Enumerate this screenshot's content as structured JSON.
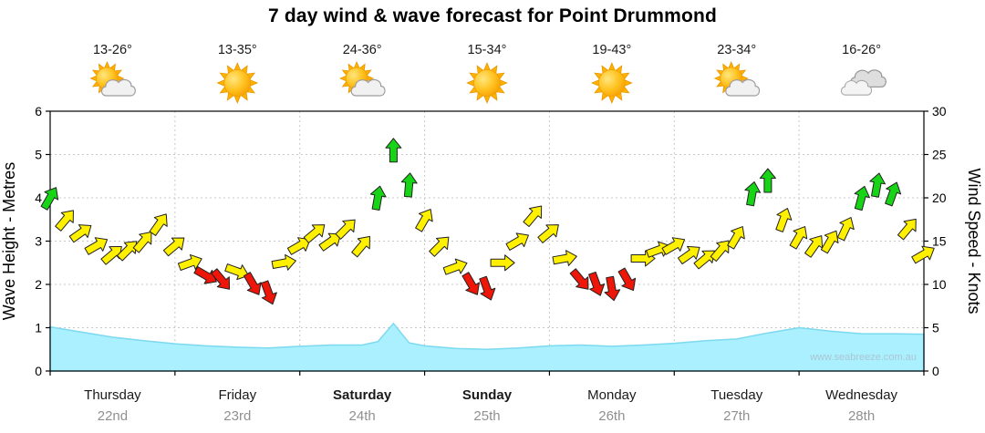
{
  "page": {
    "watermark": "www.seabreeze.com.au"
  },
  "chart_data": {
    "type": "line",
    "title": "7 day wind & wave forecast for Point Drummond",
    "left_axis": {
      "label": "Wave Height - Metres",
      "min": 0,
      "max": 6,
      "tick_step": 1
    },
    "right_axis": {
      "label": "Wind Speed - Knots",
      "min": 0,
      "max": 30,
      "tick_step": 5
    },
    "legend": "none",
    "grid": "dotted",
    "days": [
      {
        "name": "Thursday",
        "date": "22nd",
        "temps": "13-26°",
        "icon": "sun-cloud",
        "weekend": false
      },
      {
        "name": "Friday",
        "date": "23rd",
        "temps": "13-35°",
        "icon": "sun",
        "weekend": false
      },
      {
        "name": "Saturday",
        "date": "24th",
        "temps": "24-36°",
        "icon": "sun-cloud",
        "weekend": true
      },
      {
        "name": "Sunday",
        "date": "25th",
        "temps": "15-34°",
        "icon": "sun",
        "weekend": true
      },
      {
        "name": "Monday",
        "date": "26th",
        "temps": "19-43°",
        "icon": "sun",
        "weekend": false
      },
      {
        "name": "Tuesday",
        "date": "27th",
        "temps": "23-34°",
        "icon": "sun-cloud",
        "weekend": false
      },
      {
        "name": "Wednesday",
        "date": "28th",
        "temps": "16-26°",
        "icon": "cloud",
        "weekend": false
      }
    ],
    "wind_series": {
      "name": "Wind Speed",
      "units": "knots",
      "thresholds": {
        "red_max": 11,
        "green_min": 20
      },
      "points_format": [
        "day_fraction",
        "knots",
        "direction_deg"
      ],
      "points": [
        [
          0.0,
          20,
          30
        ],
        [
          0.125,
          17.5,
          40
        ],
        [
          0.25,
          16,
          55
        ],
        [
          0.375,
          14.5,
          60
        ],
        [
          0.5,
          13.5,
          50
        ],
        [
          0.625,
          14,
          45
        ],
        [
          0.75,
          15,
          40
        ],
        [
          0.875,
          17,
          35
        ],
        [
          1.0,
          14.5,
          50
        ],
        [
          1.125,
          12.5,
          70
        ],
        [
          1.25,
          11,
          120
        ],
        [
          1.375,
          10.5,
          140
        ],
        [
          1.5,
          11.5,
          110
        ],
        [
          1.625,
          10,
          150
        ],
        [
          1.75,
          9,
          160
        ],
        [
          1.875,
          12.5,
          80
        ],
        [
          2.0,
          14.5,
          60
        ],
        [
          2.125,
          16,
          50
        ],
        [
          2.25,
          15,
          55
        ],
        [
          2.375,
          16.5,
          45
        ],
        [
          2.5,
          14.5,
          40
        ],
        [
          2.625,
          20,
          10
        ],
        [
          2.75,
          25.5,
          0
        ],
        [
          2.875,
          21.5,
          5
        ],
        [
          3.0,
          17.5,
          30
        ],
        [
          3.125,
          14.5,
          45
        ],
        [
          3.25,
          12,
          70
        ],
        [
          3.375,
          10,
          150
        ],
        [
          3.5,
          9.5,
          160
        ],
        [
          3.625,
          12.5,
          90
        ],
        [
          3.75,
          15,
          60
        ],
        [
          3.875,
          18,
          40
        ],
        [
          4.0,
          16,
          50
        ],
        [
          4.125,
          13,
          80
        ],
        [
          4.25,
          10.5,
          140
        ],
        [
          4.375,
          10,
          160
        ],
        [
          4.5,
          9.5,
          170
        ],
        [
          4.625,
          10.5,
          150
        ],
        [
          4.75,
          13,
          90
        ],
        [
          4.875,
          14,
          70
        ],
        [
          5.0,
          14.5,
          60
        ],
        [
          5.125,
          13.5,
          55
        ],
        [
          5.25,
          13,
          50
        ],
        [
          5.375,
          14,
          40
        ],
        [
          5.5,
          15.5,
          30
        ],
        [
          5.625,
          20.5,
          10
        ],
        [
          5.75,
          22,
          0
        ],
        [
          5.875,
          17.5,
          20
        ],
        [
          6.0,
          15.5,
          30
        ],
        [
          6.125,
          14.5,
          35
        ],
        [
          6.25,
          15,
          30
        ],
        [
          6.375,
          16.5,
          25
        ],
        [
          6.5,
          20,
          15
        ],
        [
          6.625,
          21.5,
          10
        ],
        [
          6.75,
          20.5,
          20
        ],
        [
          6.875,
          16.5,
          40
        ],
        [
          7.0,
          13.5,
          60
        ]
      ]
    },
    "wave_series": {
      "name": "Wave Height",
      "units": "metres",
      "points_format": [
        "day_fraction",
        "metres"
      ],
      "points": [
        [
          0,
          1.02
        ],
        [
          0.25,
          0.9
        ],
        [
          0.5,
          0.78
        ],
        [
          0.75,
          0.7
        ],
        [
          1,
          0.63
        ],
        [
          1.25,
          0.58
        ],
        [
          1.5,
          0.55
        ],
        [
          1.75,
          0.53
        ],
        [
          2,
          0.57
        ],
        [
          2.25,
          0.6
        ],
        [
          2.5,
          0.6
        ],
        [
          2.625,
          0.68
        ],
        [
          2.75,
          1.1
        ],
        [
          2.875,
          0.65
        ],
        [
          3,
          0.58
        ],
        [
          3.25,
          0.52
        ],
        [
          3.5,
          0.5
        ],
        [
          3.75,
          0.53
        ],
        [
          4,
          0.58
        ],
        [
          4.25,
          0.6
        ],
        [
          4.5,
          0.57
        ],
        [
          4.75,
          0.6
        ],
        [
          5,
          0.64
        ],
        [
          5.25,
          0.7
        ],
        [
          5.5,
          0.74
        ],
        [
          5.75,
          0.88
        ],
        [
          6,
          1.0
        ],
        [
          6.25,
          0.92
        ],
        [
          6.5,
          0.86
        ],
        [
          6.75,
          0.86
        ],
        [
          7,
          0.85
        ]
      ]
    },
    "colors": {
      "wind_light": "#ee1509",
      "wind_moderate": "#fff000",
      "wind_strong": "#17d417",
      "arrow_outline": "#222222",
      "wave_fill": "#aaf0ff",
      "wave_stroke": "#7cd9ef",
      "grid": "#c8c8c8",
      "frame": "#000000",
      "day_name": "#1a1a1a",
      "day_date": "#909090",
      "temp_text": "#1a1a1a",
      "watermark": "#aac6d2"
    }
  }
}
